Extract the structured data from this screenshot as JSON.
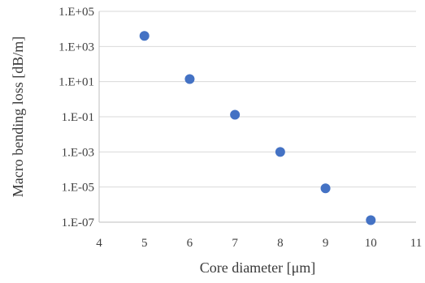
{
  "chart_data": {
    "type": "scatter",
    "title": "",
    "xlabel": "Core diameter  [μm]",
    "ylabel": "Macro bending loss [dB/m]",
    "xlim": [
      4,
      11
    ],
    "ylim": [
      1e-07,
      100000
    ],
    "yscale": "log",
    "grid": "horizontal",
    "legend": "none",
    "x_ticks": [
      "4",
      "5",
      "6",
      "7",
      "8",
      "9",
      "10",
      "11"
    ],
    "y_ticks": [
      "1.E-07",
      "1.E-05",
      "1.E-03",
      "1.E-01",
      "1.E+01",
      "1.E+03",
      "1.E+05"
    ],
    "series": [
      {
        "x": [
          5,
          6,
          7,
          8,
          9,
          10
        ],
        "y": [
          4000,
          14,
          0.13,
          0.001,
          8.5e-06,
          1.3e-07
        ],
        "color": "#4472C4"
      }
    ],
    "colors": {
      "marker": "#4472C4",
      "grid": "#d9d9d9",
      "axis": "#bfbfbf",
      "text": "#404040"
    }
  }
}
